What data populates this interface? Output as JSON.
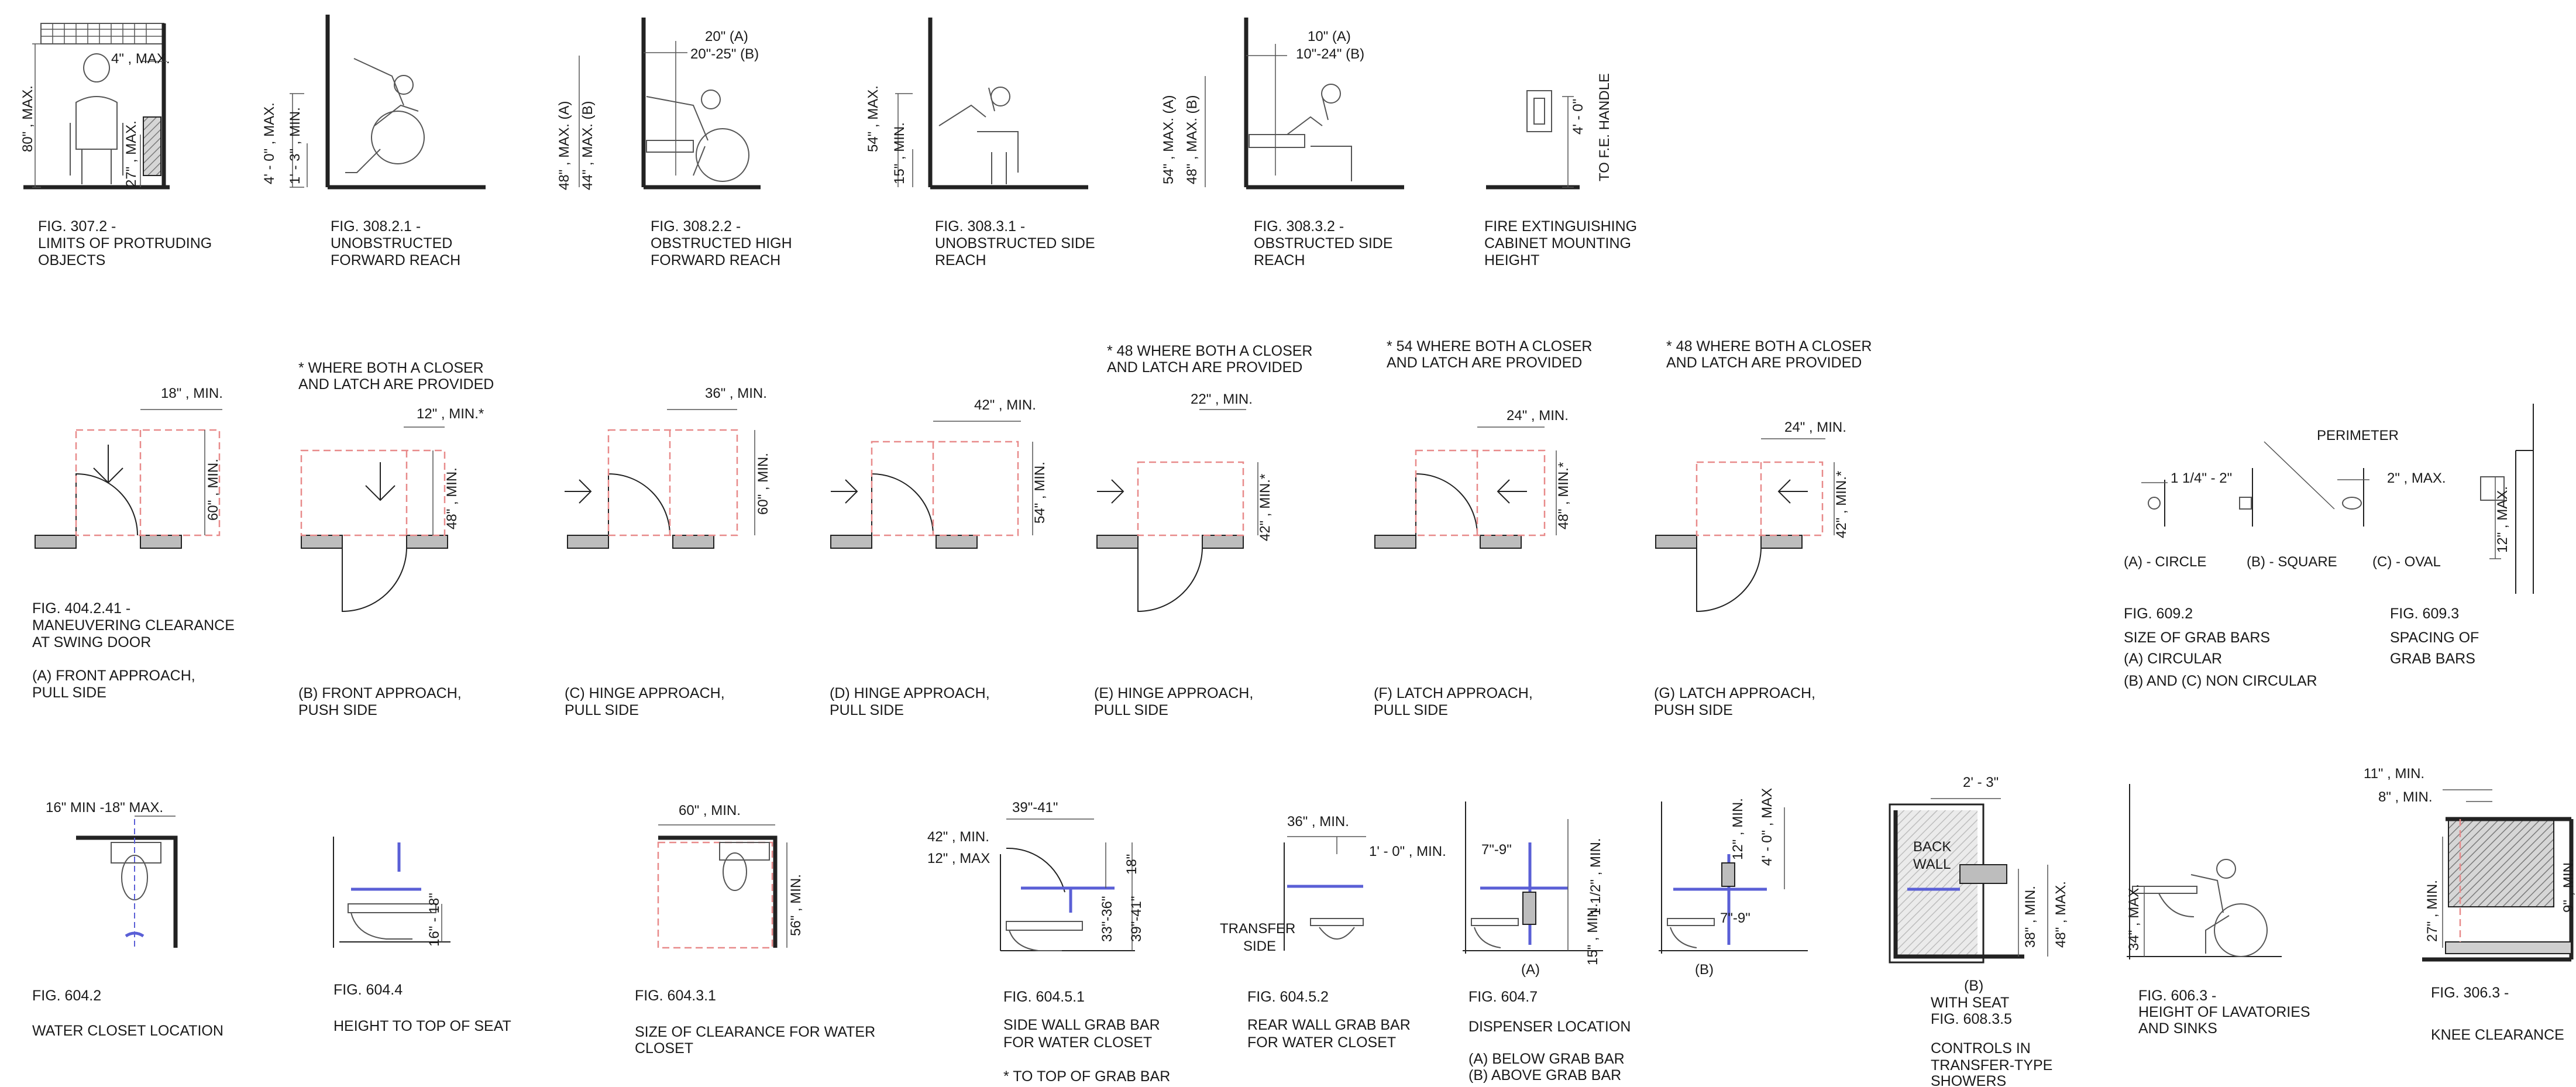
{
  "row1": {
    "f307": {
      "dims": [
        "4\" , MAX.",
        "80\" , MAX.",
        "27\" , MAX."
      ],
      "caption": [
        "FIG. 307.2 -",
        "LIMITS OF PROTRUDING",
        "OBJECTS"
      ]
    },
    "f30821": {
      "dims": [
        "4' - 0\" , MAX.",
        "1' - 3\" , MIN."
      ],
      "caption": [
        "FIG. 308.2.1 -",
        "UNOBSTRUCTED",
        "FORWARD REACH"
      ]
    },
    "f30822": {
      "dims": [
        "20\" (A)",
        "20\"-25\" (B)",
        "48\" , MAX. (A)",
        "44\" , MAX. (B)"
      ],
      "caption": [
        "FIG. 308.2.2 -",
        "OBSTRUCTED HIGH",
        "FORWARD REACH"
      ]
    },
    "f30831": {
      "dims": [
        "54\" , MAX.",
        "15\" , MIN."
      ],
      "caption": [
        "FIG. 308.3.1 -",
        "UNOBSTRUCTED SIDE",
        "REACH"
      ]
    },
    "f30832": {
      "dims": [
        "10\" (A)",
        "10\"-24\" (B)",
        "54\" , MAX. (A)",
        "48\" , MAX. (B)"
      ],
      "caption": [
        "FIG. 308.3.2 -",
        "OBSTRUCTED SIDE",
        "REACH"
      ]
    },
    "fire": {
      "dims": [
        "4' - 0\"",
        "TO F.E. HANDLE"
      ],
      "caption": [
        "FIRE EXTINGUISHING",
        "CABINET MOUNTING",
        "HEIGHT"
      ]
    }
  },
  "row2": {
    "a": {
      "dims": [
        "18\" , MIN.",
        "60\" , MIN."
      ],
      "caption": [
        "FIG. 404.2.41 -",
        "MANEUVERING CLEARANCE",
        "AT SWING DOOR"
      ],
      "caption2": [
        "(A) FRONT APPROACH,",
        "PULL SIDE"
      ]
    },
    "b": {
      "note": [
        "* WHERE BOTH A CLOSER",
        "AND LATCH ARE PROVIDED"
      ],
      "dims": [
        "12\" , MIN.*",
        "48\" , MIN."
      ],
      "caption": [
        "(B) FRONT APPROACH,",
        "PUSH SIDE"
      ]
    },
    "c": {
      "dims": [
        "36\" , MIN.",
        "60\" , MIN."
      ],
      "caption": [
        "(C) HINGE APPROACH,",
        "PULL SIDE"
      ]
    },
    "d": {
      "dims": [
        "42\" , MIN.",
        "54\" , MIN."
      ],
      "caption": [
        "(D) HINGE APPROACH,",
        "PULL SIDE"
      ]
    },
    "e": {
      "note": [
        "* 48 WHERE BOTH A CLOSER",
        "AND LATCH ARE PROVIDED"
      ],
      "dims": [
        "22\" , MIN.",
        "42\" , MIN.*"
      ],
      "caption": [
        "(E) HINGE APPROACH,",
        "PULL SIDE"
      ]
    },
    "f": {
      "note": [
        "* 54 WHERE BOTH A CLOSER",
        "AND LATCH ARE PROVIDED"
      ],
      "dims": [
        "24\" , MIN.",
        "48\" , MIN.*"
      ],
      "caption": [
        "(F) LATCH APPROACH,",
        "PULL SIDE"
      ]
    },
    "g": {
      "note": [
        "* 48 WHERE BOTH A CLOSER",
        "AND LATCH ARE PROVIDED"
      ],
      "dims": [
        "24\" , MIN.",
        "42\" , MIN.*"
      ],
      "caption": [
        "(G) LATCH APPROACH,",
        "PUSH SIDE"
      ]
    },
    "f6092": {
      "labels": [
        "1 1/4\" - 2\"",
        "PERIMETER",
        "2\" , MAX.",
        "(A) - CIRCLE",
        "(B) - SQUARE",
        "(C) - OVAL"
      ],
      "caption": [
        "FIG. 609.2",
        "SIZE OF GRAB BARS",
        "(A) CIRCULAR",
        "(B) AND (C) NON CIRCULAR"
      ]
    },
    "f6093": {
      "dims": [
        "12\" , MAX."
      ],
      "caption": [
        "FIG. 609.3",
        "SPACING OF",
        "GRAB BARS"
      ]
    }
  },
  "row3": {
    "f6042": {
      "dims": [
        "16\" MIN -18\" MAX."
      ],
      "caption": [
        "FIG. 604.2",
        "WATER CLOSET LOCATION"
      ]
    },
    "f6044": {
      "dims": [
        "16\" - 18\""
      ],
      "caption": [
        "FIG. 604.4",
        "HEIGHT TO TOP OF SEAT"
      ]
    },
    "f60431": {
      "dims": [
        "60\" , MIN.",
        "56\" , MIN."
      ],
      "caption": [
        "FIG. 604.3.1",
        "SIZE OF CLEARANCE FOR WATER",
        "CLOSET"
      ]
    },
    "f60451": {
      "dims": [
        "39\"-41\"",
        "42\" , MIN.",
        "12\" , MAX",
        "18\"",
        "33\"-36\"",
        "39\"-41\""
      ],
      "caption": [
        "FIG. 604.5.1",
        "SIDE WALL GRAB BAR",
        "FOR WATER CLOSET",
        "* TO TOP OF GRAB BAR"
      ]
    },
    "f60452": {
      "dims": [
        "36\" , MIN.",
        "1' - 0\" , MIN.",
        "TRANSFER",
        "SIDE"
      ],
      "caption": [
        "FIG. 604.5.2",
        "REAR WALL GRAB BAR",
        "FOR WATER CLOSET"
      ]
    },
    "f6047": {
      "dims": [
        "7\"-9\"",
        "1 1/2\" , MIN.",
        "15\" , MIN.",
        "(A)",
        "12\" , MIN.",
        "4' - 0\" , MAX",
        "7\"-9\"",
        "(B)"
      ],
      "caption": [
        "FIG. 604.7",
        "DISPENSER LOCATION",
        "(A) BELOW GRAB BAR",
        "(B) ABOVE GRAB BAR"
      ]
    },
    "f6083": {
      "dims": [
        "2' - 3\"",
        "BACK",
        "WALL",
        "38\" , MIN.",
        "48\" , MAX."
      ],
      "caption": [
        "(B)",
        "WITH SEAT",
        "FIG. 608.3.5",
        "CONTROLS IN",
        "TRANSFER-TYPE",
        "SHOWERS"
      ]
    },
    "f6063": {
      "dims": [
        "34\" , MAX."
      ],
      "caption": [
        "FIG. 606.3 -",
        "HEIGHT OF LAVATORIES",
        "AND SINKS"
      ]
    },
    "f3063": {
      "dims": [
        "11\" , MIN.",
        "8\" , MIN.",
        "27\" , MIN.",
        "9\" , MIN."
      ],
      "caption": [
        "FIG. 306.3 -",
        "KNEE CLEARANCE"
      ]
    }
  }
}
